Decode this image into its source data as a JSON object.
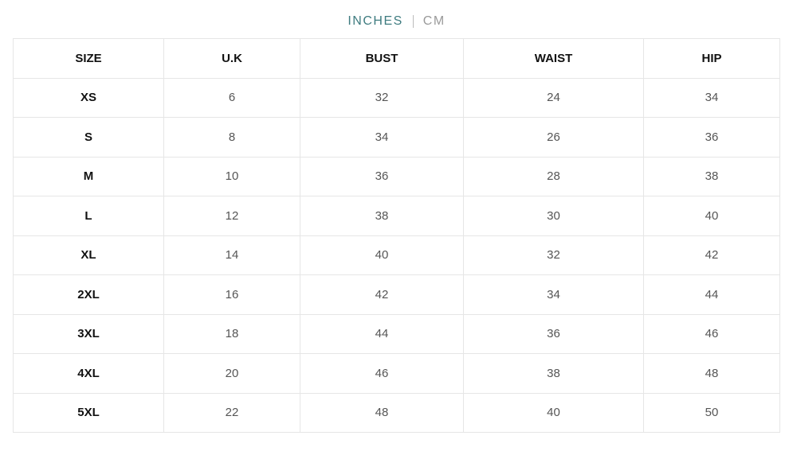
{
  "unit_toggle": {
    "active": "INCHES",
    "inactive": "CM",
    "colors": {
      "active": "#3f7c80",
      "inactive": "#9a9a9a"
    }
  },
  "table": {
    "headers": [
      "SIZE",
      "U.K",
      "BUST",
      "WAIST",
      "HIP"
    ],
    "rows": [
      [
        "XS",
        "6",
        "32",
        "24",
        "34"
      ],
      [
        "S",
        "8",
        "34",
        "26",
        "36"
      ],
      [
        "M",
        "10",
        "36",
        "28",
        "38"
      ],
      [
        "L",
        "12",
        "38",
        "30",
        "40"
      ],
      [
        "XL",
        "14",
        "40",
        "32",
        "42"
      ],
      [
        "2XL",
        "16",
        "42",
        "34",
        "44"
      ],
      [
        "3XL",
        "18",
        "44",
        "36",
        "46"
      ],
      [
        "4XL",
        "20",
        "46",
        "38",
        "48"
      ],
      [
        "5XL",
        "22",
        "48",
        "40",
        "50"
      ]
    ]
  }
}
